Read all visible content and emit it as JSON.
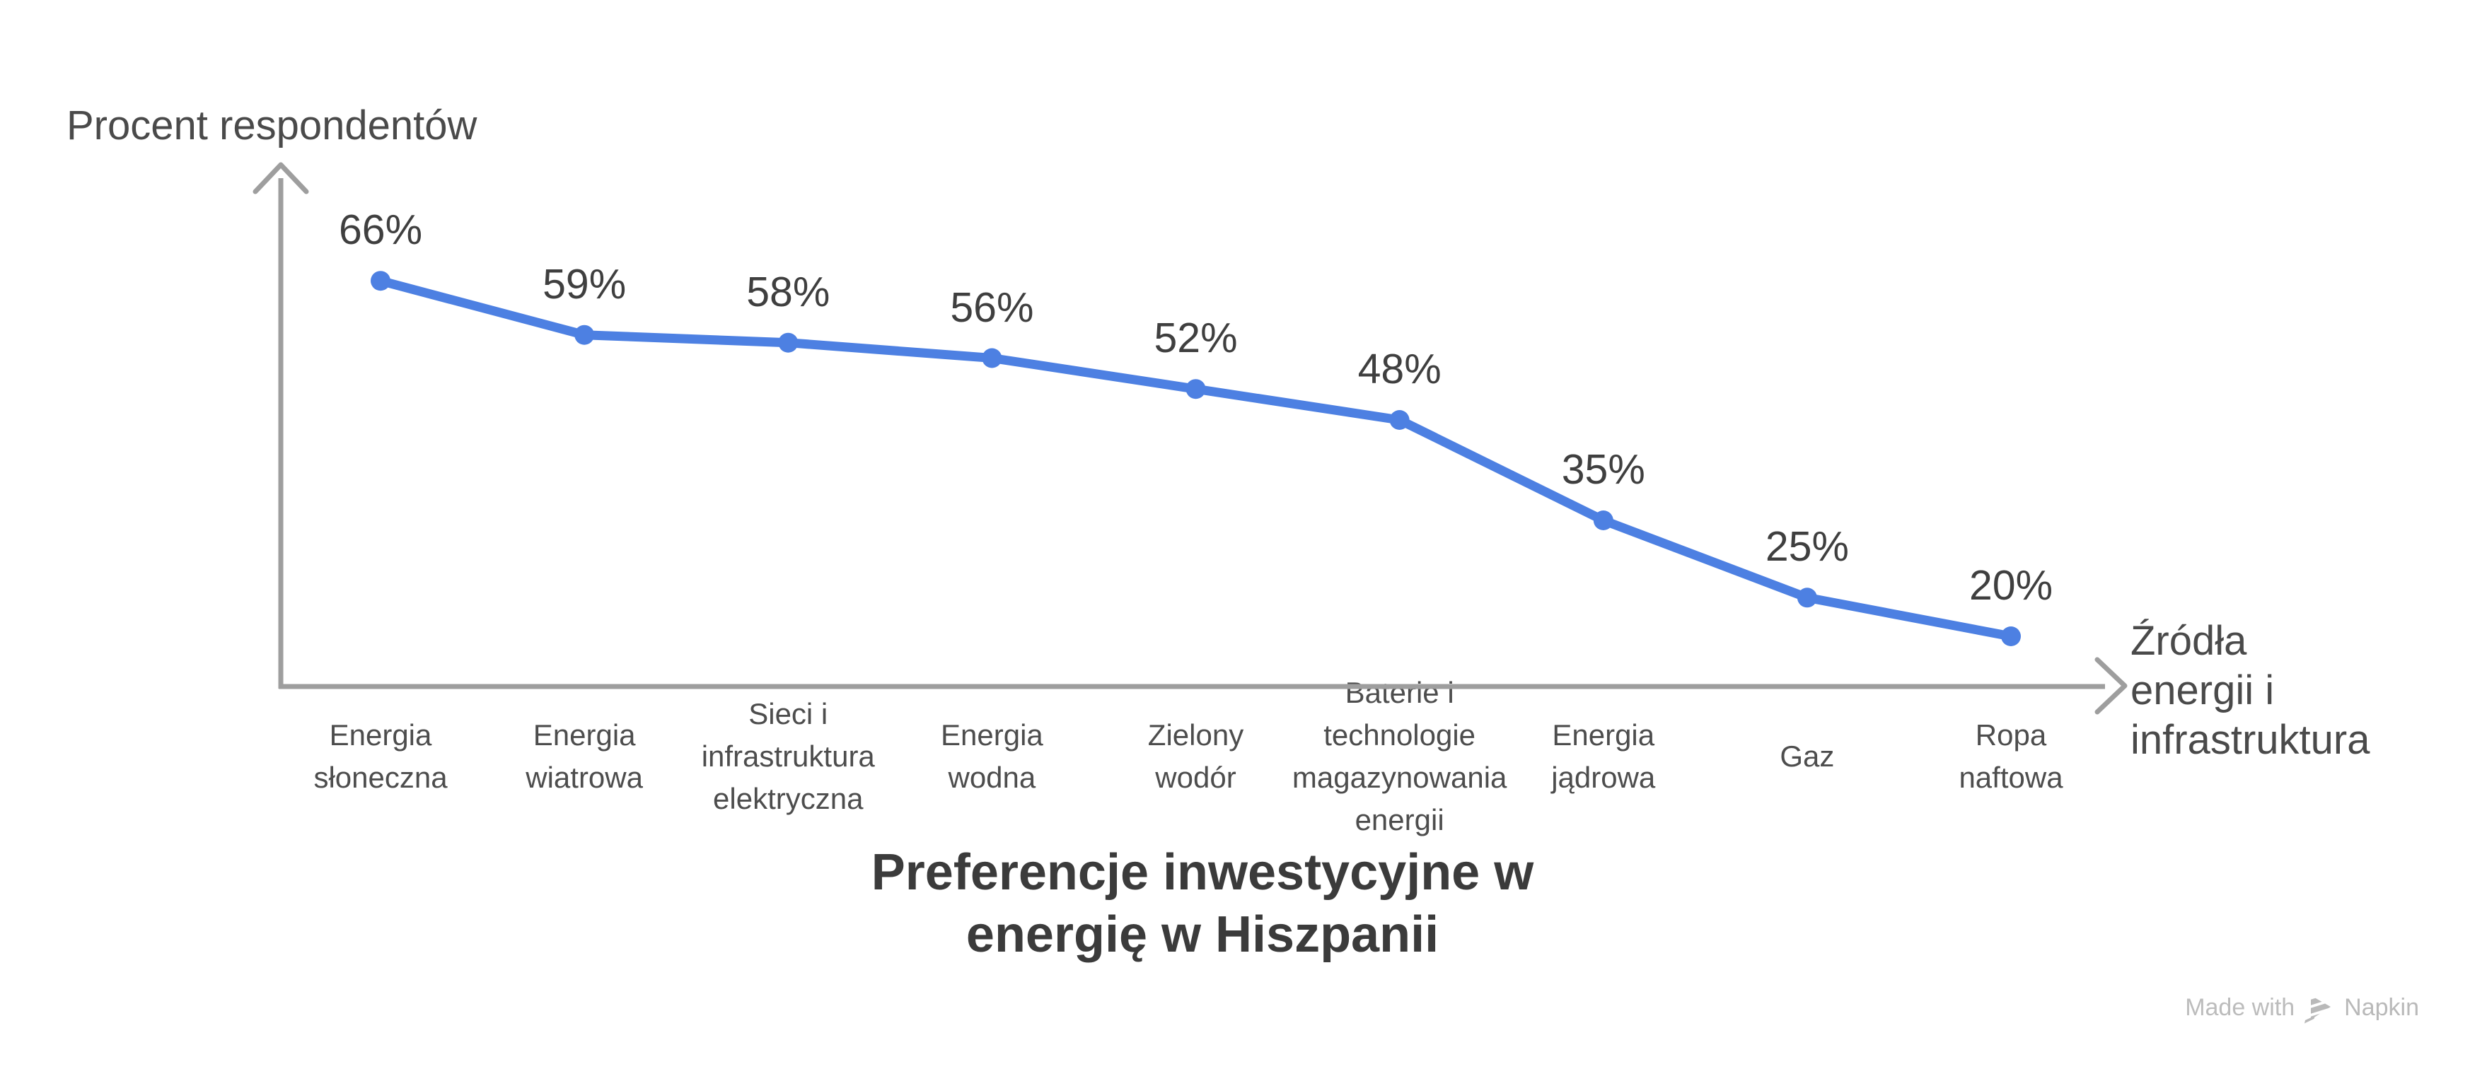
{
  "chart_data": {
    "type": "line",
    "title": "Preferencje inwestycyjne w energię w Hiszpanii",
    "title_lines": [
      "Preferencje inwestycyjne w",
      "energię w Hiszpanii"
    ],
    "ylabel": "Procent respondentów",
    "xlabel": "Źródła energii i infrastruktura",
    "xlabel_lines": [
      "Źródła",
      "energii i",
      "infrastruktura"
    ],
    "categories": [
      "Energia słoneczna",
      "Energia wiatrowa",
      "Sieci i infrastruktura elektryczna",
      "Energia wodna",
      "Zielony wodór",
      "Baterie i technologie magazynowania energii",
      "Energia jądrowa",
      "Gaz",
      "Ropa naftowa"
    ],
    "category_lines": [
      [
        "Energia",
        "słoneczna"
      ],
      [
        "Energia",
        "wiatrowa"
      ],
      [
        "Sieci i",
        "infrastruktura",
        "elektryczna"
      ],
      [
        "Energia",
        "wodna"
      ],
      [
        "Zielony",
        "wodór"
      ],
      [
        "Baterie i",
        "technologie",
        "magazynowania",
        "energii"
      ],
      [
        "Energia",
        "jądrowa"
      ],
      [
        "Gaz"
      ],
      [
        "Ropa",
        "naftowa"
      ]
    ],
    "values": [
      66,
      59,
      58,
      56,
      52,
      48,
      35,
      25,
      20
    ],
    "value_labels": [
      "66%",
      "59%",
      "58%",
      "56%",
      "52%",
      "48%",
      "35%",
      "25%",
      "20%"
    ],
    "unit": "%",
    "legend": "none",
    "grid": false,
    "axis_numeric_ticks": false,
    "colors": {
      "line": "#4d80e2",
      "point": "#4d80e2",
      "axis": "#9e9e9e",
      "value_text": "#3f3f3f",
      "category_text": "#4d4d4d",
      "title_text": "#3b3b3b"
    }
  },
  "watermark": {
    "prefix": "Made with",
    "brand": "Napkin",
    "logo": "napkin-logo-icon",
    "color": "#bcbcbc"
  }
}
